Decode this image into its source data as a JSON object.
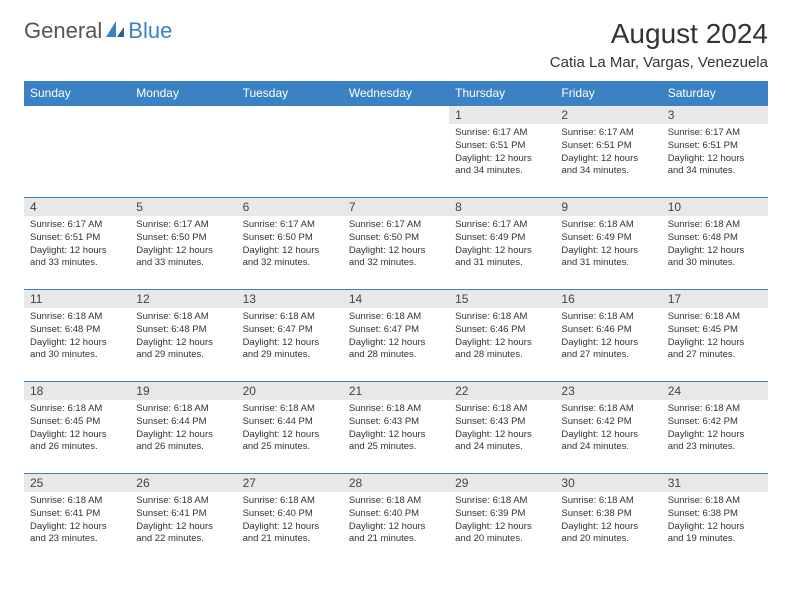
{
  "logo": {
    "text1": "General",
    "text2": "Blue"
  },
  "title": "August 2024",
  "location": "Catia La Mar, Vargas, Venezuela",
  "colors": {
    "header_bg": "#3b82c4",
    "header_text": "#ffffff",
    "daynum_bg": "#e8e8e8",
    "border": "#3b82c4",
    "body_text": "#333333",
    "logo_gray": "#555555",
    "logo_blue": "#3b82c4"
  },
  "weekdays": [
    "Sunday",
    "Monday",
    "Tuesday",
    "Wednesday",
    "Thursday",
    "Friday",
    "Saturday"
  ],
  "weeks": [
    [
      null,
      null,
      null,
      null,
      {
        "n": "1",
        "sr": "6:17 AM",
        "ss": "6:51 PM",
        "dl": "12 hours and 34 minutes."
      },
      {
        "n": "2",
        "sr": "6:17 AM",
        "ss": "6:51 PM",
        "dl": "12 hours and 34 minutes."
      },
      {
        "n": "3",
        "sr": "6:17 AM",
        "ss": "6:51 PM",
        "dl": "12 hours and 34 minutes."
      }
    ],
    [
      {
        "n": "4",
        "sr": "6:17 AM",
        "ss": "6:51 PM",
        "dl": "12 hours and 33 minutes."
      },
      {
        "n": "5",
        "sr": "6:17 AM",
        "ss": "6:50 PM",
        "dl": "12 hours and 33 minutes."
      },
      {
        "n": "6",
        "sr": "6:17 AM",
        "ss": "6:50 PM",
        "dl": "12 hours and 32 minutes."
      },
      {
        "n": "7",
        "sr": "6:17 AM",
        "ss": "6:50 PM",
        "dl": "12 hours and 32 minutes."
      },
      {
        "n": "8",
        "sr": "6:17 AM",
        "ss": "6:49 PM",
        "dl": "12 hours and 31 minutes."
      },
      {
        "n": "9",
        "sr": "6:18 AM",
        "ss": "6:49 PM",
        "dl": "12 hours and 31 minutes."
      },
      {
        "n": "10",
        "sr": "6:18 AM",
        "ss": "6:48 PM",
        "dl": "12 hours and 30 minutes."
      }
    ],
    [
      {
        "n": "11",
        "sr": "6:18 AM",
        "ss": "6:48 PM",
        "dl": "12 hours and 30 minutes."
      },
      {
        "n": "12",
        "sr": "6:18 AM",
        "ss": "6:48 PM",
        "dl": "12 hours and 29 minutes."
      },
      {
        "n": "13",
        "sr": "6:18 AM",
        "ss": "6:47 PM",
        "dl": "12 hours and 29 minutes."
      },
      {
        "n": "14",
        "sr": "6:18 AM",
        "ss": "6:47 PM",
        "dl": "12 hours and 28 minutes."
      },
      {
        "n": "15",
        "sr": "6:18 AM",
        "ss": "6:46 PM",
        "dl": "12 hours and 28 minutes."
      },
      {
        "n": "16",
        "sr": "6:18 AM",
        "ss": "6:46 PM",
        "dl": "12 hours and 27 minutes."
      },
      {
        "n": "17",
        "sr": "6:18 AM",
        "ss": "6:45 PM",
        "dl": "12 hours and 27 minutes."
      }
    ],
    [
      {
        "n": "18",
        "sr": "6:18 AM",
        "ss": "6:45 PM",
        "dl": "12 hours and 26 minutes."
      },
      {
        "n": "19",
        "sr": "6:18 AM",
        "ss": "6:44 PM",
        "dl": "12 hours and 26 minutes."
      },
      {
        "n": "20",
        "sr": "6:18 AM",
        "ss": "6:44 PM",
        "dl": "12 hours and 25 minutes."
      },
      {
        "n": "21",
        "sr": "6:18 AM",
        "ss": "6:43 PM",
        "dl": "12 hours and 25 minutes."
      },
      {
        "n": "22",
        "sr": "6:18 AM",
        "ss": "6:43 PM",
        "dl": "12 hours and 24 minutes."
      },
      {
        "n": "23",
        "sr": "6:18 AM",
        "ss": "6:42 PM",
        "dl": "12 hours and 24 minutes."
      },
      {
        "n": "24",
        "sr": "6:18 AM",
        "ss": "6:42 PM",
        "dl": "12 hours and 23 minutes."
      }
    ],
    [
      {
        "n": "25",
        "sr": "6:18 AM",
        "ss": "6:41 PM",
        "dl": "12 hours and 23 minutes."
      },
      {
        "n": "26",
        "sr": "6:18 AM",
        "ss": "6:41 PM",
        "dl": "12 hours and 22 minutes."
      },
      {
        "n": "27",
        "sr": "6:18 AM",
        "ss": "6:40 PM",
        "dl": "12 hours and 21 minutes."
      },
      {
        "n": "28",
        "sr": "6:18 AM",
        "ss": "6:40 PM",
        "dl": "12 hours and 21 minutes."
      },
      {
        "n": "29",
        "sr": "6:18 AM",
        "ss": "6:39 PM",
        "dl": "12 hours and 20 minutes."
      },
      {
        "n": "30",
        "sr": "6:18 AM",
        "ss": "6:38 PM",
        "dl": "12 hours and 20 minutes."
      },
      {
        "n": "31",
        "sr": "6:18 AM",
        "ss": "6:38 PM",
        "dl": "12 hours and 19 minutes."
      }
    ]
  ],
  "labels": {
    "sunrise": "Sunrise:",
    "sunset": "Sunset:",
    "daylight": "Daylight:"
  }
}
